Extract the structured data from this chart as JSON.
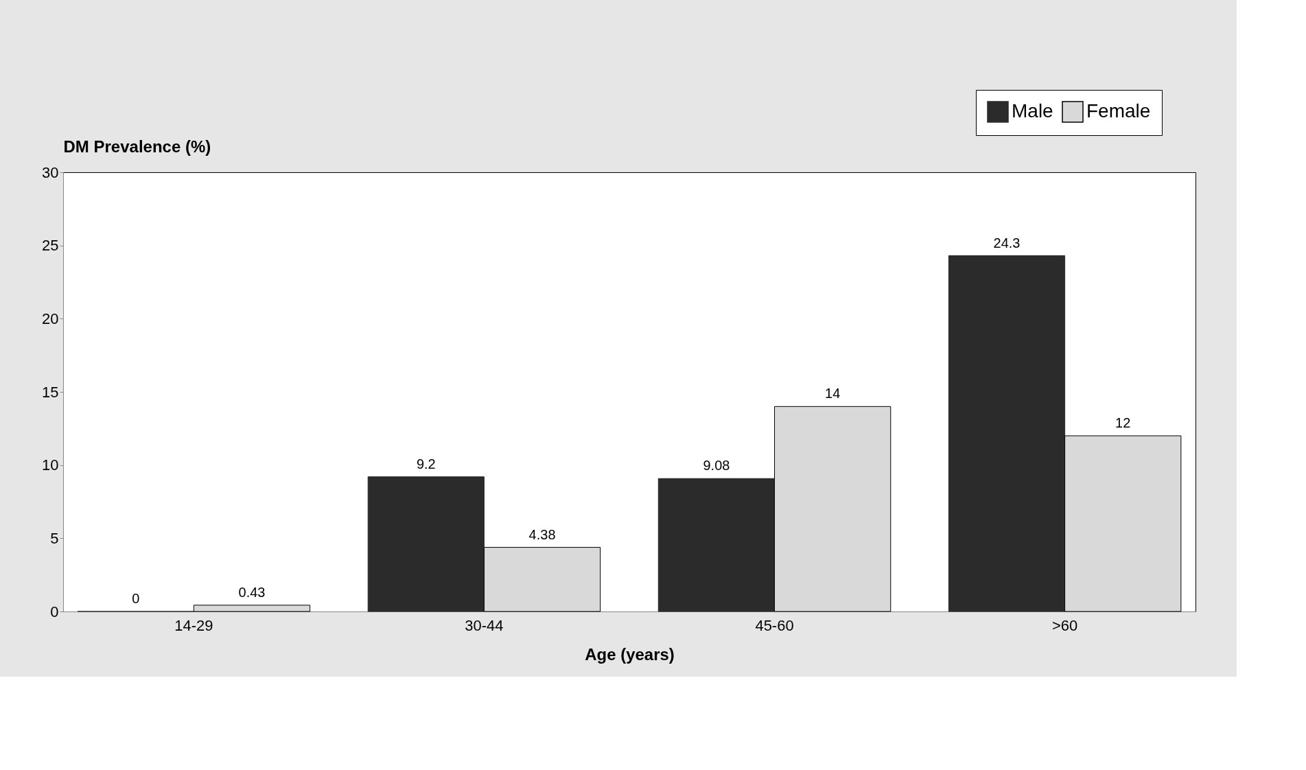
{
  "chart_data": {
    "type": "bar",
    "ylabel": "DM Prevalence (%)",
    "xlabel": "Age (years)",
    "categories": [
      "14-29",
      "30-44",
      "45-60",
      ">60"
    ],
    "series": [
      {
        "name": "Male",
        "color": "#2b2b2b",
        "values": [
          0,
          9.2,
          9.08,
          24.3
        ]
      },
      {
        "name": "Female",
        "color": "#d9d9d9",
        "values": [
          0.43,
          4.38,
          14,
          12
        ]
      }
    ],
    "ylim": [
      0,
      30
    ],
    "yticks": [
      0,
      5,
      10,
      15,
      20,
      25,
      30
    ],
    "grid": false,
    "legend": "top right",
    "data_labels": true
  }
}
